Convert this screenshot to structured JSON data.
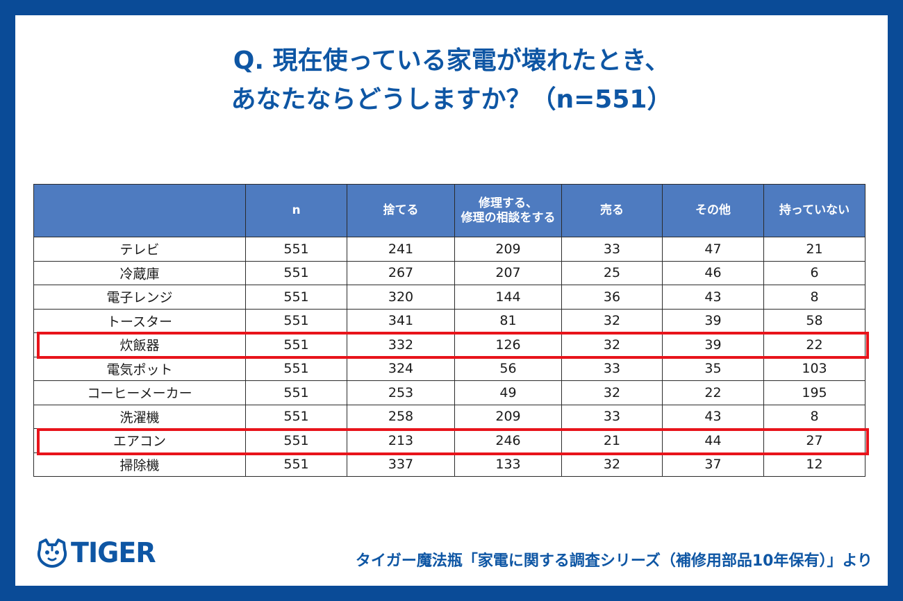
{
  "title": {
    "line1": "Q. 現在使っている家電が壊れたとき、",
    "line2": "あなたならどうしますか？（n=551）"
  },
  "table": {
    "headers": [
      "",
      "n",
      "捨てる",
      "修理する、\n修理の相談をする",
      "売る",
      "その他",
      "持っていない"
    ],
    "rows": [
      [
        "テレビ",
        "551",
        "241",
        "209",
        "33",
        "47",
        "21"
      ],
      [
        "冷蔵庫",
        "551",
        "267",
        "207",
        "25",
        "46",
        "6"
      ],
      [
        "電子レンジ",
        "551",
        "320",
        "144",
        "36",
        "43",
        "8"
      ],
      [
        "トースター",
        "551",
        "341",
        "81",
        "32",
        "39",
        "58"
      ],
      [
        "炊飯器",
        "551",
        "332",
        "126",
        "32",
        "39",
        "22"
      ],
      [
        "電気ポット",
        "551",
        "324",
        "56",
        "33",
        "35",
        "103"
      ],
      [
        "コーヒーメーカー",
        "551",
        "253",
        "49",
        "32",
        "22",
        "195"
      ],
      [
        "洗濯機",
        "551",
        "258",
        "209",
        "33",
        "43",
        "8"
      ],
      [
        "エアコン",
        "551",
        "213",
        "246",
        "21",
        "44",
        "27"
      ],
      [
        "掃除機",
        "551",
        "337",
        "133",
        "32",
        "37",
        "12"
      ]
    ],
    "highlighted_rows": [
      "炊飯器",
      "エアコン"
    ]
  },
  "logo": {
    "text": "TIGER",
    "icon": "tiger-face-icon"
  },
  "source": "タイガー魔法瓶「家電に関する調査シリーズ（補修用部品10年保有）」より",
  "colors": {
    "frame": "#0a4b97",
    "title": "#0e56a4",
    "header_bg": "#4e7bc0",
    "highlight": "#e8141b"
  }
}
